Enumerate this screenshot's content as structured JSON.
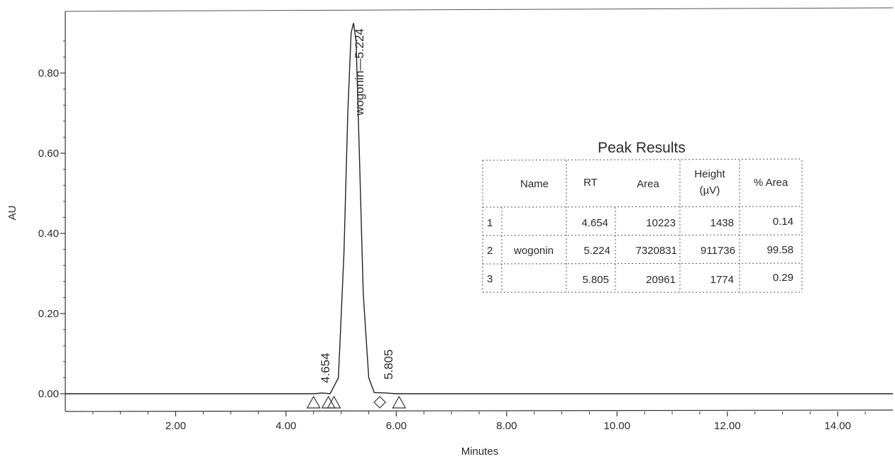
{
  "chart_data": {
    "type": "line",
    "xlabel": "Minutes",
    "ylabel": "AU",
    "xlim": [
      0.0,
      15.0
    ],
    "ylim": [
      -0.04,
      0.94
    ],
    "x_ticks": [
      {
        "value": 2.0,
        "label": "2.00"
      },
      {
        "value": 4.0,
        "label": "4.00"
      },
      {
        "value": 6.0,
        "label": "6.00"
      },
      {
        "value": 8.0,
        "label": "8.00"
      },
      {
        "value": 10.0,
        "label": "10.00"
      },
      {
        "value": 12.0,
        "label": "12.00"
      },
      {
        "value": 14.0,
        "label": "14.00"
      }
    ],
    "y_ticks": [
      {
        "value": 0.0,
        "label": "0.00"
      },
      {
        "value": 0.2,
        "label": "0.20"
      },
      {
        "value": 0.4,
        "label": "0.40"
      },
      {
        "value": 0.6,
        "label": "0.60"
      },
      {
        "value": 0.8,
        "label": "0.80"
      }
    ],
    "series": [
      {
        "x": [
          0.0,
          2.0,
          4.0,
          4.5,
          4.654,
          4.8,
          4.95,
          5.05,
          5.12,
          5.18,
          5.224,
          5.27,
          5.33,
          5.4,
          5.5,
          5.6,
          5.805,
          6.0,
          8.0,
          10.0,
          12.0,
          14.0,
          15.0
        ],
        "y": [
          0.0,
          0.0,
          0.0,
          0.0,
          0.002,
          0.0,
          0.04,
          0.35,
          0.7,
          0.9,
          0.925,
          0.88,
          0.6,
          0.25,
          0.04,
          0.003,
          0.002,
          0.0,
          0.0,
          0.0,
          0.0,
          0.0,
          0.0
        ]
      }
    ],
    "peaks": [
      {
        "rt": 4.654,
        "label": "4.654"
      },
      {
        "rt": 5.224,
        "label": "wogonin—5.224"
      },
      {
        "rt": 5.805,
        "label": "5.805"
      }
    ],
    "markers": [
      {
        "x": 4.5,
        "shape": "triangle"
      },
      {
        "x": 4.77,
        "shape": "triangle"
      },
      {
        "x": 4.87,
        "shape": "triangle"
      },
      {
        "x": 5.7,
        "shape": "diamond"
      },
      {
        "x": 6.05,
        "shape": "triangle"
      }
    ]
  },
  "peak_table": {
    "title": "Peak Results",
    "columns": [
      "",
      "Name",
      "RT",
      "Area",
      "Height",
      "% Area"
    ],
    "height_unit": "(µV)",
    "rows": [
      {
        "num": "1",
        "name": "",
        "rt": "4.654",
        "area": "10223",
        "height": "1438",
        "pct": "0.14"
      },
      {
        "num": "2",
        "name": "wogonin",
        "rt": "5.224",
        "area": "7320831",
        "height": "911736",
        "pct": "99.58"
      },
      {
        "num": "3",
        "name": "",
        "rt": "5.805",
        "area": "20961",
        "height": "1774",
        "pct": "0.29"
      }
    ]
  }
}
